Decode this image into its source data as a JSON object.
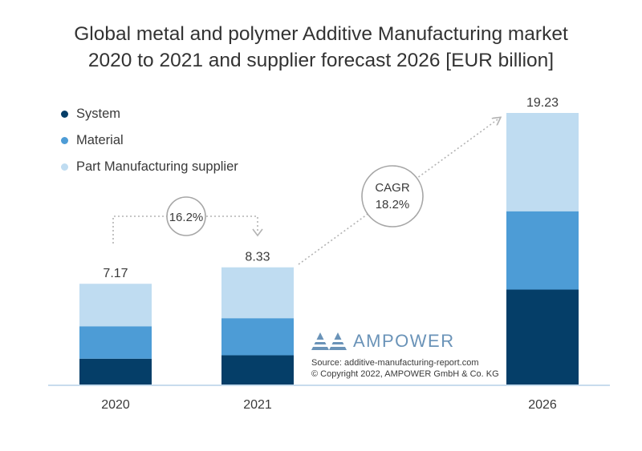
{
  "title_line1": "Global metal and polymer Additive Manufacturing market",
  "title_line2": "2020 to 2021 and supplier forecast 2026 [EUR billion]",
  "colors": {
    "system": "#053e68",
    "material": "#4d9cd6",
    "part": "#bfdcf1",
    "axis": "#c8dced",
    "dotted": "#b3b3b3",
    "circle": "#a6a6a6"
  },
  "legend": [
    {
      "label": "System",
      "color": "#053e68"
    },
    {
      "label": "Material",
      "color": "#4d9cd6"
    },
    {
      "label": "Part Manufacturing supplier",
      "color": "#bfdcf1"
    }
  ],
  "growth_2020_2021": "16.2%",
  "cagr_label": "CAGR",
  "cagr_value": "18.2%",
  "logo_text": "AMPOWER",
  "source_line": "Source: additive-manufacturing-report.com",
  "copyright_line": "© Copyright 2022, AMPOWER GmbH & Co. KG",
  "chart_data": {
    "type": "bar",
    "stacked": true,
    "categories": [
      "2020",
      "2021",
      "2026"
    ],
    "series": [
      {
        "name": "System",
        "values": [
          1.88,
          2.12,
          6.76
        ]
      },
      {
        "name": "Material",
        "values": [
          2.29,
          2.62,
          5.53
        ]
      },
      {
        "name": "Part Manufacturing supplier",
        "values": [
          3.0,
          3.59,
          6.94
        ]
      }
    ],
    "totals": [
      "7.17",
      "8.33",
      "19.23"
    ],
    "ylim": [
      0,
      19.23
    ]
  }
}
